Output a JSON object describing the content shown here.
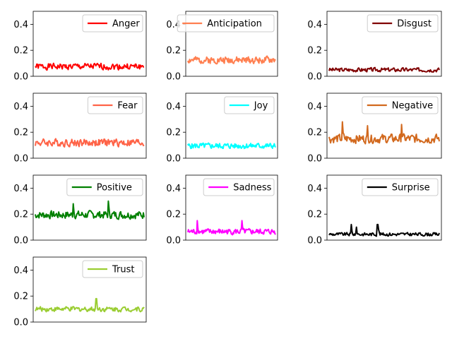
{
  "chart_data": [
    {
      "type": "line",
      "series": [
        {
          "name": "Anger",
          "color": "#ff0000",
          "mean": 0.075,
          "amp": 0.028,
          "spikes": []
        }
      ],
      "ylim": [
        0,
        0.5
      ],
      "yticks": [
        "0.0",
        "0.2",
        "0.4"
      ],
      "xticks": [],
      "legend": "upper right"
    },
    {
      "type": "line",
      "series": [
        {
          "name": "Anticipation",
          "color": "#ff7f50",
          "mean": 0.125,
          "amp": 0.03,
          "spikes": []
        }
      ],
      "ylim": [
        0,
        0.5
      ],
      "yticks": [
        "0.0",
        "0.2",
        "0.4"
      ],
      "xticks": [],
      "legend": "upper right"
    },
    {
      "type": "line",
      "series": [
        {
          "name": "Disgust",
          "color": "#800000",
          "mean": 0.05,
          "amp": 0.018,
          "spikes": []
        }
      ],
      "ylim": [
        0,
        0.5
      ],
      "yticks": [
        "0.0",
        "0.2",
        "0.4"
      ],
      "xticks": [],
      "legend": "upper right"
    },
    {
      "type": "line",
      "series": [
        {
          "name": "Fear",
          "color": "#ff6347",
          "mean": 0.12,
          "amp": 0.035,
          "spikes": []
        }
      ],
      "ylim": [
        0,
        0.5
      ],
      "yticks": [
        "0.0",
        "0.2",
        "0.4"
      ],
      "xticks": [],
      "legend": "upper right"
    },
    {
      "type": "line",
      "series": [
        {
          "name": "Joy",
          "color": "#00ffff",
          "mean": 0.095,
          "amp": 0.025,
          "spikes": []
        }
      ],
      "ylim": [
        0,
        0.5
      ],
      "yticks": [
        "0.0",
        "0.2",
        "0.4"
      ],
      "xticks": [],
      "legend": "upper right"
    },
    {
      "type": "line",
      "series": [
        {
          "name": "Negative",
          "color": "#d2691e",
          "mean": 0.15,
          "amp": 0.04,
          "spikes": [
            [
              0.12,
              0.28
            ],
            [
              0.35,
              0.25
            ],
            [
              0.66,
              0.26
            ]
          ]
        }
      ],
      "ylim": [
        0,
        0.5
      ],
      "yticks": [
        "0.0",
        "0.2",
        "0.4"
      ],
      "xticks": [],
      "legend": "upper right"
    },
    {
      "type": "line",
      "series": [
        {
          "name": "Positive",
          "color": "#008000",
          "mean": 0.195,
          "amp": 0.035,
          "spikes": [
            [
              0.35,
              0.28
            ],
            [
              0.67,
              0.3
            ]
          ]
        }
      ],
      "ylim": [
        0,
        0.5
      ],
      "yticks": [
        "0.0",
        "0.2",
        "0.4"
      ],
      "xticks": [],
      "legend": "upper right"
    },
    {
      "type": "line",
      "series": [
        {
          "name": "Sadness",
          "color": "#ff00ff",
          "mean": 0.065,
          "amp": 0.025,
          "spikes": [
            [
              0.11,
              0.15
            ],
            [
              0.62,
              0.15
            ]
          ]
        }
      ],
      "ylim": [
        0,
        0.5
      ],
      "yticks": [
        "0.0",
        "0.2",
        "0.4"
      ],
      "xticks": [],
      "legend": "upper right"
    },
    {
      "type": "line",
      "series": [
        {
          "name": "Surprise",
          "color": "#000000",
          "mean": 0.045,
          "amp": 0.015,
          "spikes": [
            [
              0.2,
              0.12
            ],
            [
              0.25,
              0.1
            ],
            [
              0.44,
              0.12
            ],
            [
              0.45,
              0.08
            ]
          ]
        }
      ],
      "ylim": [
        0,
        0.5
      ],
      "yticks": [
        "0.0",
        "0.2",
        "0.4"
      ],
      "xticks": [],
      "legend": "upper right"
    },
    {
      "type": "line",
      "series": [
        {
          "name": "Trust",
          "color": "#9acd32",
          "mean": 0.1,
          "amp": 0.022,
          "spikes": [
            [
              0.56,
              0.18
            ]
          ]
        }
      ],
      "ylim": [
        0,
        0.5
      ],
      "yticks": [
        "0.0",
        "0.2",
        "0.4"
      ],
      "xticks": [],
      "legend": "upper right"
    }
  ]
}
